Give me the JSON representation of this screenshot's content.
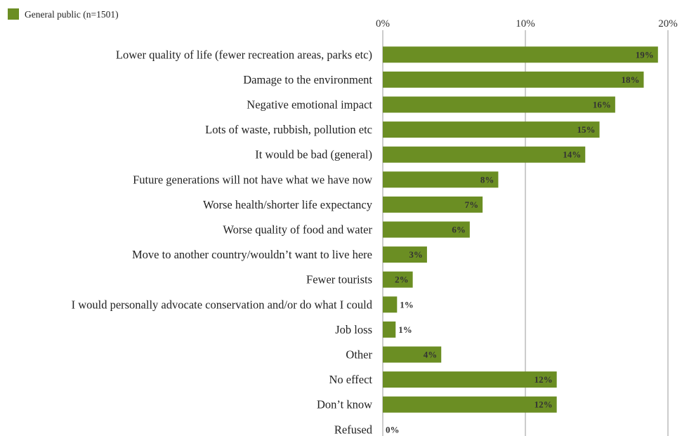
{
  "chart_data": {
    "type": "bar",
    "orientation": "horizontal",
    "categories": [
      "Lower quality of life (fewer recreation areas, parks etc)",
      "Damage to the environment",
      "Negative emotional impact",
      "Lots of waste, rubbish, pollution etc",
      "It would be bad (general)",
      "Future generations will not have what we have now",
      "Worse health/shorter life expectancy",
      "Worse quality of food and water",
      "Move to another country/wouldn’t want to live here",
      "Fewer tourists",
      "I would personally advocate conservation and/or do what I could",
      "Job loss",
      "Other",
      "No effect",
      "Don’t know",
      "Refused"
    ],
    "series": [
      {
        "name": "General public (n=1501)",
        "color": "#6b8e23",
        "values": [
          19.3,
          18.3,
          16.3,
          15.2,
          14.2,
          8.1,
          7.0,
          6.1,
          3.1,
          2.1,
          1.0,
          0.9,
          4.1,
          12.2,
          12.2,
          0
        ],
        "labels": [
          "19%",
          "18%",
          "16%",
          "15%",
          "14%",
          "8%",
          "7%",
          "6%",
          "3%",
          "2%",
          "1%",
          "1%",
          "4%",
          "12%",
          "12%",
          "0%"
        ]
      }
    ],
    "xlim": [
      0,
      20
    ],
    "xticks": [
      0,
      10,
      20
    ],
    "xtick_labels": [
      "0%",
      "10%",
      "20%"
    ],
    "xaxis_position": "top",
    "grid": true,
    "legend_position": "top-left"
  }
}
